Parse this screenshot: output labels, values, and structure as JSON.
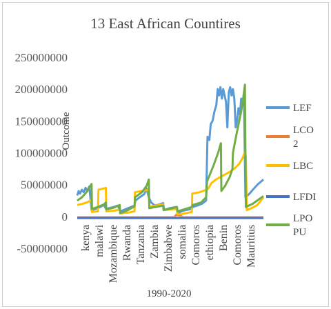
{
  "chart_data": {
    "type": "line",
    "title": "13 East African Countires",
    "xlabel": "1990-2020",
    "ylabel": "Outcome",
    "ylim": [
      -50000000,
      250000000
    ],
    "yticks": [
      -50000000,
      0,
      50000000,
      100000000,
      150000000,
      200000000,
      250000000
    ],
    "ytick_labels": [
      "-50000000",
      "0",
      "50000000",
      "100000000",
      "150000000",
      "200000000",
      "250000000"
    ],
    "categories": [
      "kenya",
      "malawi",
      "Mozambique",
      "Rwanda",
      "Tanzania",
      "Zambia",
      "Zimbabwe",
      "somalia",
      "Comoros",
      "ethiopia",
      "Benin",
      "Comoros",
      "Mauritius"
    ],
    "x_range": [
      0,
      403
    ],
    "grid": false,
    "legend": "right",
    "series": [
      {
        "name": "LEF",
        "color": "#5b9bd5",
        "points": [
          [
            0,
            33000000
          ],
          [
            3,
            40000000
          ],
          [
            6,
            36000000
          ],
          [
            10,
            42000000
          ],
          [
            14,
            38000000
          ],
          [
            18,
            45000000
          ],
          [
            22,
            40000000
          ],
          [
            26,
            47000000
          ],
          [
            31,
            10000000
          ],
          [
            40,
            12000000
          ],
          [
            50,
            15000000
          ],
          [
            58,
            18000000
          ],
          [
            62,
            12000000
          ],
          [
            75,
            14000000
          ],
          [
            88,
            17000000
          ],
          [
            93,
            8000000
          ],
          [
            100,
            10000000
          ],
          [
            110,
            13000000
          ],
          [
            124,
            17000000
          ],
          [
            126,
            25000000
          ],
          [
            135,
            30000000
          ],
          [
            145,
            35000000
          ],
          [
            150,
            44000000
          ],
          [
            155,
            30000000
          ],
          [
            160,
            22000000
          ],
          [
            168,
            17000000
          ],
          [
            178,
            19000000
          ],
          [
            186,
            21000000
          ],
          [
            188,
            10000000
          ],
          [
            200,
            13000000
          ],
          [
            215,
            15000000
          ],
          [
            217,
            4000000
          ],
          [
            225,
            8000000
          ],
          [
            235,
            10000000
          ],
          [
            248,
            12000000
          ],
          [
            250,
            15000000
          ],
          [
            260,
            17000000
          ],
          [
            270,
            20000000
          ],
          [
            279,
            25000000
          ],
          [
            282,
            125000000
          ],
          [
            286,
            120000000
          ],
          [
            289,
            145000000
          ],
          [
            293,
            150000000
          ],
          [
            297,
            165000000
          ],
          [
            301,
            175000000
          ],
          [
            304,
            200000000
          ],
          [
            307,
            190000000
          ],
          [
            310,
            203000000
          ],
          [
            313,
            185000000
          ],
          [
            316,
            200000000
          ],
          [
            319,
            190000000
          ],
          [
            322,
            180000000
          ],
          [
            325,
            140000000
          ],
          [
            328,
            195000000
          ],
          [
            331,
            203000000
          ],
          [
            334,
            190000000
          ],
          [
            337,
            200000000
          ],
          [
            340,
            185000000
          ],
          [
            343,
            140000000
          ],
          [
            346,
            150000000
          ],
          [
            349,
            170000000
          ],
          [
            352,
            160000000
          ],
          [
            355,
            185000000
          ],
          [
            358,
            175000000
          ],
          [
            361,
            180000000
          ],
          [
            364,
            30000000
          ],
          [
            372,
            35000000
          ],
          [
            380,
            42000000
          ],
          [
            390,
            50000000
          ],
          [
            403,
            58000000
          ]
        ]
      },
      {
        "name": "LCO2",
        "color": "#ed7d31",
        "points": [
          [
            0,
            -1000000
          ],
          [
            210,
            -1000000
          ],
          [
            215,
            3000000
          ],
          [
            222,
            1000000
          ],
          [
            230,
            -1000000
          ],
          [
            403,
            -1000000
          ]
        ]
      },
      {
        "name": "LBC",
        "color": "#ffc000",
        "points": [
          [
            0,
            18000000
          ],
          [
            12,
            20000000
          ],
          [
            24,
            23000000
          ],
          [
            31,
            26000000
          ],
          [
            32,
            7000000
          ],
          [
            45,
            8000000
          ],
          [
            46,
            42000000
          ],
          [
            58,
            44000000
          ],
          [
            62,
            45000000
          ],
          [
            63,
            8000000
          ],
          [
            80,
            9000000
          ],
          [
            92,
            11000000
          ],
          [
            93,
            5000000
          ],
          [
            110,
            6000000
          ],
          [
            124,
            8000000
          ],
          [
            125,
            38000000
          ],
          [
            140,
            40000000
          ],
          [
            155,
            42000000
          ],
          [
            156,
            15000000
          ],
          [
            170,
            17000000
          ],
          [
            186,
            19000000
          ],
          [
            187,
            10000000
          ],
          [
            200,
            11000000
          ],
          [
            216,
            12000000
          ],
          [
            217,
            3000000
          ],
          [
            235,
            5000000
          ],
          [
            248,
            7000000
          ],
          [
            249,
            36000000
          ],
          [
            265,
            38000000
          ],
          [
            280,
            42000000
          ],
          [
            285,
            45000000
          ],
          [
            290,
            52000000
          ],
          [
            300,
            58000000
          ],
          [
            310,
            62000000
          ],
          [
            320,
            66000000
          ],
          [
            330,
            70000000
          ],
          [
            340,
            75000000
          ],
          [
            350,
            82000000
          ],
          [
            358,
            92000000
          ],
          [
            362,
            100000000
          ],
          [
            365,
            95000000
          ],
          [
            367,
            10000000
          ],
          [
            380,
            14000000
          ],
          [
            390,
            18000000
          ],
          [
            403,
            30000000
          ]
        ]
      },
      {
        "name": "LFDI",
        "color": "#4472c4",
        "points": [
          [
            0,
            -2500000
          ],
          [
            403,
            -2500000
          ]
        ]
      },
      {
        "name": "LPOPU",
        "color": "#70ad47",
        "points": [
          [
            0,
            25000000
          ],
          [
            10,
            30000000
          ],
          [
            20,
            38000000
          ],
          [
            31,
            51000000
          ],
          [
            32,
            12000000
          ],
          [
            45,
            15000000
          ],
          [
            58,
            19000000
          ],
          [
            62,
            22000000
          ],
          [
            63,
            11000000
          ],
          [
            80,
            14000000
          ],
          [
            92,
            18000000
          ],
          [
            93,
            5000000
          ],
          [
            110,
            10000000
          ],
          [
            124,
            16000000
          ],
          [
            125,
            30000000
          ],
          [
            140,
            38000000
          ],
          [
            150,
            48000000
          ],
          [
            155,
            58000000
          ],
          [
            156,
            13000000
          ],
          [
            170,
            15000000
          ],
          [
            186,
            17000000
          ],
          [
            187,
            10000000
          ],
          [
            200,
            12000000
          ],
          [
            216,
            15000000
          ],
          [
            217,
            8000000
          ],
          [
            235,
            12000000
          ],
          [
            248,
            15000000
          ],
          [
            250,
            18000000
          ],
          [
            268,
            22000000
          ],
          [
            279,
            30000000
          ],
          [
            281,
            55000000
          ],
          [
            295,
            80000000
          ],
          [
            305,
            100000000
          ],
          [
            311,
            115000000
          ],
          [
            312,
            40000000
          ],
          [
            320,
            48000000
          ],
          [
            330,
            62000000
          ],
          [
            336,
            75000000
          ],
          [
            337,
            100000000
          ],
          [
            345,
            130000000
          ],
          [
            355,
            165000000
          ],
          [
            360,
            190000000
          ],
          [
            363,
            207000000
          ],
          [
            365,
            15000000
          ],
          [
            380,
            20000000
          ],
          [
            403,
            32000000
          ]
        ]
      }
    ]
  }
}
